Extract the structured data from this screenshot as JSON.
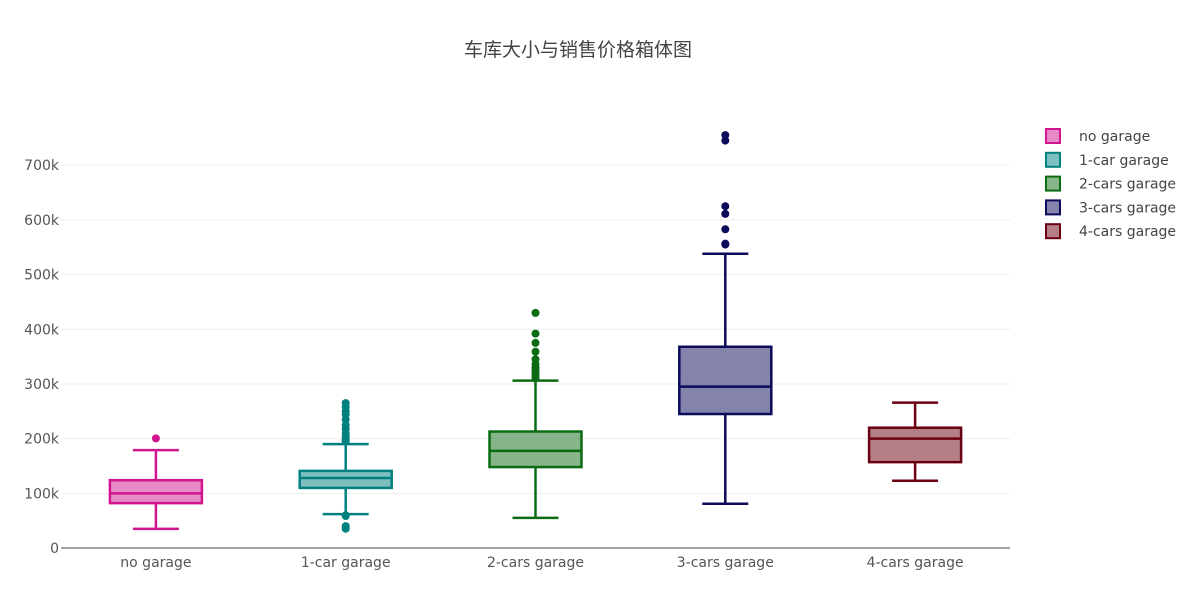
{
  "chart_data": {
    "type": "box",
    "title": "车库大小与销售价格箱体图",
    "xlabel": "",
    "ylabel": "",
    "ylim": [
      0,
      790000
    ],
    "yticks": [
      0,
      100000,
      200000,
      300000,
      400000,
      500000,
      600000,
      700000
    ],
    "ytick_labels": [
      "0",
      "100k",
      "200k",
      "300k",
      "400k",
      "500k",
      "600k",
      "700k"
    ],
    "grid": true,
    "legend_position": "top-right",
    "categories": [
      "no garage",
      "1-car garage",
      "2-cars garage",
      "3-cars garage",
      "4-cars garage"
    ],
    "series": [
      {
        "name": "no garage",
        "color": "#d0158f",
        "min": 34900,
        "q1": 82000,
        "median": 100000,
        "q3": 124000,
        "max": 179000,
        "outliers": [
          200500
        ]
      },
      {
        "name": "1-car garage",
        "color": "#00807f",
        "min": 62000,
        "q1": 109900,
        "median": 128000,
        "q3": 141000,
        "max": 190000,
        "outliers": [
          35300,
          39300,
          40000,
          58500,
          60000,
          195000,
          198000,
          200000,
          204000,
          210000,
          218000,
          225000,
          235000,
          244000,
          250000,
          258000,
          265000
        ]
      },
      {
        "name": "2-cars garage",
        "color": "#0b6b12",
        "min": 55000,
        "q1": 148000,
        "median": 177500,
        "q3": 213000,
        "max": 306000,
        "outliers": [
          310000,
          315000,
          320000,
          325000,
          330000,
          336000,
          345000,
          359000,
          375000,
          392000,
          430000
        ]
      },
      {
        "name": "3-cars garage",
        "color": "#0c0a5a",
        "min": 81000,
        "q1": 245000,
        "median": 295000,
        "q3": 368000,
        "max": 538000,
        "outliers": [
          555000,
          556500,
          582900,
          611000,
          625000,
          745000,
          755000
        ]
      },
      {
        "name": "4-cars garage",
        "color": "#6b0010",
        "min": 123000,
        "q1": 157000,
        "median": 200000,
        "q3": 220000,
        "max": 265900,
        "outliers": []
      }
    ]
  }
}
